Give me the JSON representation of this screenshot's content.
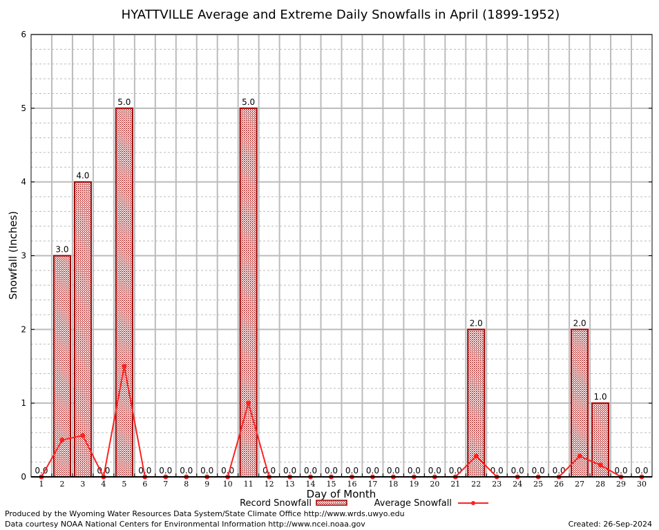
{
  "chart_data": {
    "type": "bar",
    "title": "HYATTVILLE Average and Extreme Daily Snowfalls in April (1899-1952)",
    "xlabel": "Day of Month",
    "ylabel": "Snowfall (Inches)",
    "ylim": [
      0,
      6
    ],
    "yticks": [
      "0",
      "1",
      "2",
      "3",
      "4",
      "5",
      "6"
    ],
    "categories": [
      "1",
      "2",
      "3",
      "4",
      "5",
      "6",
      "7",
      "8",
      "9",
      "10",
      "11",
      "12",
      "13",
      "14",
      "15",
      "16",
      "17",
      "18",
      "19",
      "20",
      "21",
      "22",
      "23",
      "24",
      "25",
      "26",
      "27",
      "28",
      "29",
      "30"
    ],
    "grid": true,
    "series": [
      {
        "name": "Record Snowfall",
        "type": "bar",
        "values": [
          0,
          3,
          4,
          0,
          5,
          0,
          0,
          0,
          0,
          0,
          5,
          0,
          0,
          0,
          0,
          0,
          0,
          0,
          0,
          0,
          0,
          2,
          0,
          0,
          0,
          0,
          2,
          1,
          0,
          0
        ],
        "labels": [
          "0.0",
          "3.0",
          "4.0",
          "0.0",
          "5.0",
          "0.0",
          "0.0",
          "0.0",
          "0.0",
          "0.0",
          "5.0",
          "0.0",
          "0.0",
          "0.0",
          "0.0",
          "0.0",
          "0.0",
          "0.0",
          "0.0",
          "0.0",
          "0.0",
          "2.0",
          "0.0",
          "0.0",
          "0.0",
          "0.0",
          "2.0",
          "1.0",
          "0.0",
          "0.0"
        ],
        "color": "#a00000"
      },
      {
        "name": "Average Snowfall",
        "type": "line",
        "values": [
          0,
          0.5,
          0.56,
          0,
          1.5,
          0,
          0,
          0,
          0,
          0,
          1.0,
          0,
          0,
          0,
          0,
          0,
          0,
          0,
          0,
          0,
          0,
          0.28,
          0,
          0,
          0,
          0,
          0.28,
          0.16,
          0,
          0
        ],
        "color": "#ff2020"
      }
    ],
    "legend": {
      "placement": "bottom-center",
      "entries": [
        "Record Snowfall",
        "Average Snowfall"
      ]
    }
  },
  "footer": {
    "line1": "Produced by the Wyoming Water Resources Data System/State Climate Office http://www.wrds.uwyo.edu",
    "line2": "Data courtesy NOAA National Centers for Environmental Information http://www.ncei.noaa.gov",
    "created": "Created:  26-Sep-2024"
  }
}
